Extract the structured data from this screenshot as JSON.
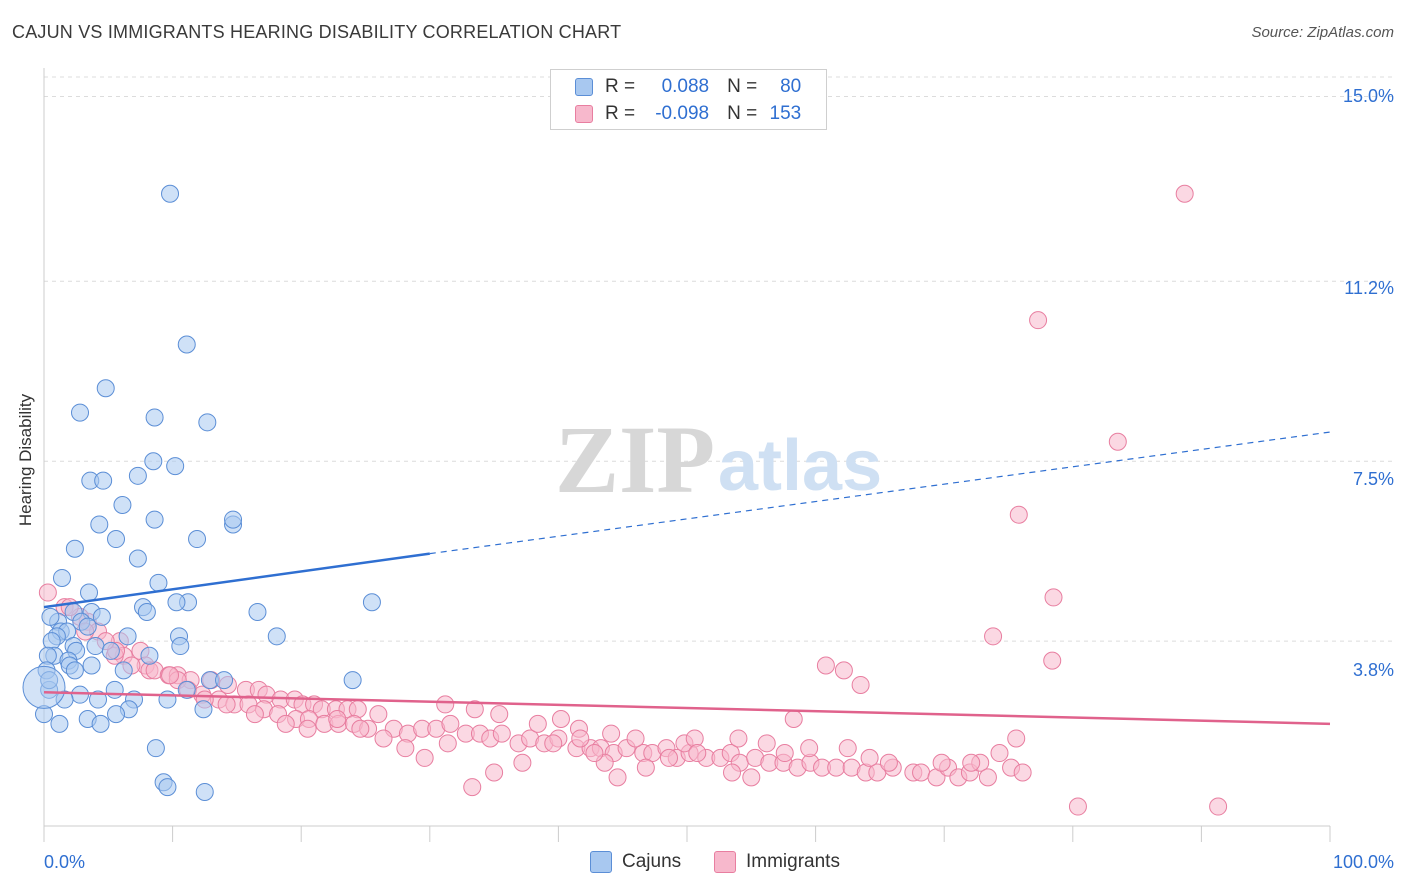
{
  "title": "CAJUN VS IMMIGRANTS HEARING DISABILITY CORRELATION CHART",
  "source": "Source: ZipAtlas.com",
  "watermark": {
    "zip": "ZIP",
    "atlas": "atlas"
  },
  "legend": {
    "rows": [
      {
        "r_label": "R =",
        "r_value": "0.088",
        "n_label": "N =",
        "n_value": "80"
      },
      {
        "r_label": "R =",
        "r_value": "-0.098",
        "n_label": "N =",
        "n_value": "153"
      }
    ]
  },
  "bottom_legend": {
    "cajuns": "Cajuns",
    "immigrants": "Immigrants"
  },
  "colors": {
    "cajuns_fill": "#a8c8f0",
    "cajuns_stroke": "#5b8ed6",
    "cajuns_line": "#2f6fd1",
    "immigrants_fill": "#f7b8cc",
    "immigrants_stroke": "#e87ea0",
    "immigrants_line": "#e0628c",
    "tick_label": "#2f6fd1",
    "grid": "#dcdcdc"
  },
  "chart_data": {
    "type": "scatter",
    "title": "CAJUN VS IMMIGRANTS HEARING DISABILITY CORRELATION CHART",
    "xlabel": "",
    "ylabel": "Hearing Disability",
    "xlim": [
      0,
      100
    ],
    "ylim": [
      0.0,
      15.4
    ],
    "x_tick_labels": [
      "0.0%",
      "100.0%"
    ],
    "y_ticks": [
      3.8,
      7.5,
      11.2,
      15.0
    ],
    "y_tick_labels": [
      "3.8%",
      "7.5%",
      "11.2%",
      "15.0%"
    ],
    "grid": true,
    "legend_position": "top-center",
    "series": [
      {
        "name": "Cajuns",
        "r": 0.088,
        "n": 80,
        "trend": {
          "x": [
            0,
            30
          ],
          "y": [
            4.5,
            5.6
          ],
          "dashed_to": [
            100,
            8.1
          ]
        },
        "points": [
          [
            9.8,
            13.0
          ],
          [
            11.1,
            9.9
          ],
          [
            4.8,
            9.0
          ],
          [
            2.8,
            8.5
          ],
          [
            8.6,
            8.4
          ],
          [
            12.7,
            8.3
          ],
          [
            10.2,
            7.4
          ],
          [
            8.5,
            7.5
          ],
          [
            7.3,
            7.2
          ],
          [
            3.6,
            7.1
          ],
          [
            4.6,
            7.1
          ],
          [
            6.1,
            6.6
          ],
          [
            8.6,
            6.3
          ],
          [
            14.7,
            6.2
          ],
          [
            14.7,
            6.3
          ],
          [
            4.3,
            6.2
          ],
          [
            5.6,
            5.9
          ],
          [
            11.9,
            5.9
          ],
          [
            2.4,
            5.7
          ],
          [
            7.3,
            5.5
          ],
          [
            1.4,
            5.1
          ],
          [
            8.9,
            5.0
          ],
          [
            3.5,
            4.8
          ],
          [
            11.2,
            4.6
          ],
          [
            25.5,
            4.6
          ],
          [
            10.3,
            4.6
          ],
          [
            7.7,
            4.5
          ],
          [
            16.6,
            4.4
          ],
          [
            3.7,
            4.4
          ],
          [
            2.3,
            4.4
          ],
          [
            8.0,
            4.4
          ],
          [
            4.5,
            4.3
          ],
          [
            1.1,
            4.2
          ],
          [
            0.5,
            4.3
          ],
          [
            2.9,
            4.2
          ],
          [
            3.4,
            4.1
          ],
          [
            1.3,
            4.0
          ],
          [
            1.8,
            4.0
          ],
          [
            18.1,
            3.9
          ],
          [
            10.5,
            3.9
          ],
          [
            6.5,
            3.9
          ],
          [
            1.0,
            3.9
          ],
          [
            0.6,
            3.8
          ],
          [
            2.3,
            3.7
          ],
          [
            10.6,
            3.7
          ],
          [
            4.0,
            3.7
          ],
          [
            2.5,
            3.6
          ],
          [
            5.2,
            3.6
          ],
          [
            8.2,
            3.5
          ],
          [
            0.8,
            3.5
          ],
          [
            0.3,
            3.5
          ],
          [
            1.9,
            3.4
          ],
          [
            3.7,
            3.3
          ],
          [
            2.0,
            3.3
          ],
          [
            6.2,
            3.2
          ],
          [
            2.4,
            3.2
          ],
          [
            0.2,
            3.2
          ],
          [
            24.0,
            3.0
          ],
          [
            12.9,
            3.0
          ],
          [
            14.0,
            3.0
          ],
          [
            5.5,
            2.8
          ],
          [
            11.1,
            2.8
          ],
          [
            2.8,
            2.7
          ],
          [
            9.6,
            2.6
          ],
          [
            7.0,
            2.6
          ],
          [
            0.4,
            2.8
          ],
          [
            1.6,
            2.6
          ],
          [
            4.2,
            2.6
          ],
          [
            6.6,
            2.4
          ],
          [
            12.4,
            2.4
          ],
          [
            5.6,
            2.3
          ],
          [
            3.4,
            2.2
          ],
          [
            4.4,
            2.1
          ],
          [
            1.2,
            2.1
          ],
          [
            0.0,
            2.3
          ],
          [
            8.7,
            1.6
          ],
          [
            9.3,
            0.9
          ],
          [
            9.6,
            0.8
          ],
          [
            12.5,
            0.7
          ],
          [
            0.4,
            3.0
          ]
        ]
      },
      {
        "name": "Immigrants",
        "r": -0.098,
        "n": 153,
        "trend": {
          "x": [
            0,
            100
          ],
          "y": [
            2.75,
            2.1
          ]
        },
        "points": [
          [
            88.7,
            13.0
          ],
          [
            77.3,
            10.4
          ],
          [
            83.5,
            7.9
          ],
          [
            75.8,
            6.4
          ],
          [
            78.5,
            4.7
          ],
          [
            0.3,
            4.8
          ],
          [
            1.6,
            4.5
          ],
          [
            3.4,
            4.2
          ],
          [
            2.8,
            4.3
          ],
          [
            73.8,
            3.9
          ],
          [
            4.2,
            4.0
          ],
          [
            3.2,
            4.0
          ],
          [
            5.9,
            3.8
          ],
          [
            7.5,
            3.6
          ],
          [
            6.2,
            3.5
          ],
          [
            5.5,
            3.5
          ],
          [
            7.9,
            3.3
          ],
          [
            8.2,
            3.2
          ],
          [
            8.6,
            3.2
          ],
          [
            9.7,
            3.1
          ],
          [
            10.4,
            3.1
          ],
          [
            11.4,
            3.0
          ],
          [
            13.0,
            3.0
          ],
          [
            14.3,
            2.9
          ],
          [
            15.7,
            2.8
          ],
          [
            16.7,
            2.8
          ],
          [
            17.3,
            2.7
          ],
          [
            18.4,
            2.6
          ],
          [
            19.5,
            2.6
          ],
          [
            20.1,
            2.5
          ],
          [
            21.0,
            2.5
          ],
          [
            21.6,
            2.4
          ],
          [
            22.7,
            2.4
          ],
          [
            23.6,
            2.4
          ],
          [
            24.4,
            2.4
          ],
          [
            10.4,
            3.0
          ],
          [
            11.2,
            2.8
          ],
          [
            12.3,
            2.7
          ],
          [
            13.6,
            2.6
          ],
          [
            14.8,
            2.5
          ],
          [
            15.9,
            2.5
          ],
          [
            17.1,
            2.4
          ],
          [
            18.2,
            2.3
          ],
          [
            19.6,
            2.2
          ],
          [
            20.6,
            2.2
          ],
          [
            21.8,
            2.1
          ],
          [
            22.9,
            2.1
          ],
          [
            24.1,
            2.1
          ],
          [
            25.2,
            2.0
          ],
          [
            26.0,
            2.3
          ],
          [
            27.2,
            2.0
          ],
          [
            28.3,
            1.9
          ],
          [
            29.4,
            2.0
          ],
          [
            30.5,
            2.0
          ],
          [
            31.6,
            2.1
          ],
          [
            32.8,
            1.9
          ],
          [
            33.9,
            1.9
          ],
          [
            34.7,
            1.8
          ],
          [
            35.6,
            1.9
          ],
          [
            36.9,
            1.7
          ],
          [
            37.8,
            1.8
          ],
          [
            38.9,
            1.7
          ],
          [
            40.0,
            1.8
          ],
          [
            41.4,
            1.6
          ],
          [
            42.5,
            1.6
          ],
          [
            43.3,
            1.6
          ],
          [
            44.3,
            1.5
          ],
          [
            45.3,
            1.6
          ],
          [
            46.6,
            1.5
          ],
          [
            47.3,
            1.5
          ],
          [
            48.4,
            1.6
          ],
          [
            49.2,
            1.4
          ],
          [
            50.2,
            1.5
          ],
          [
            51.5,
            1.4
          ],
          [
            52.6,
            1.4
          ],
          [
            53.4,
            1.5
          ],
          [
            54.1,
            1.3
          ],
          [
            55.3,
            1.4
          ],
          [
            56.4,
            1.3
          ],
          [
            57.5,
            1.3
          ],
          [
            58.6,
            1.2
          ],
          [
            59.6,
            1.3
          ],
          [
            60.5,
            1.2
          ],
          [
            61.6,
            1.2
          ],
          [
            62.8,
            1.2
          ],
          [
            63.9,
            1.1
          ],
          [
            64.8,
            1.1
          ],
          [
            66.0,
            1.2
          ],
          [
            67.6,
            1.1
          ],
          [
            68.2,
            1.1
          ],
          [
            69.4,
            1.0
          ],
          [
            70.3,
            1.2
          ],
          [
            71.1,
            1.0
          ],
          [
            72.0,
            1.1
          ],
          [
            72.8,
            1.3
          ],
          [
            73.4,
            1.0
          ],
          [
            75.2,
            1.2
          ],
          [
            76.1,
            1.1
          ],
          [
            31.2,
            2.5
          ],
          [
            33.5,
            2.4
          ],
          [
            35.4,
            2.3
          ],
          [
            38.4,
            2.1
          ],
          [
            40.2,
            2.2
          ],
          [
            41.6,
            2.0
          ],
          [
            44.1,
            1.9
          ],
          [
            46.0,
            1.8
          ],
          [
            49.8,
            1.7
          ],
          [
            50.6,
            1.8
          ],
          [
            54.0,
            1.8
          ],
          [
            56.2,
            1.7
          ],
          [
            59.5,
            1.6
          ],
          [
            62.5,
            1.6
          ],
          [
            64.2,
            1.4
          ],
          [
            65.7,
            1.3
          ],
          [
            69.8,
            1.3
          ],
          [
            72.1,
            1.3
          ],
          [
            74.3,
            1.5
          ],
          [
            75.6,
            1.8
          ],
          [
            63.5,
            2.9
          ],
          [
            62.2,
            3.2
          ],
          [
            60.8,
            3.3
          ],
          [
            58.3,
            2.2
          ],
          [
            57.6,
            1.5
          ],
          [
            55.0,
            1.0
          ],
          [
            53.5,
            1.1
          ],
          [
            50.8,
            1.5
          ],
          [
            48.6,
            1.4
          ],
          [
            46.8,
            1.2
          ],
          [
            44.6,
            1.0
          ],
          [
            43.6,
            1.3
          ],
          [
            42.8,
            1.5
          ],
          [
            41.7,
            1.8
          ],
          [
            39.6,
            1.7
          ],
          [
            37.2,
            1.3
          ],
          [
            35.0,
            1.1
          ],
          [
            33.3,
            0.8
          ],
          [
            31.4,
            1.7
          ],
          [
            29.6,
            1.4
          ],
          [
            28.1,
            1.6
          ],
          [
            26.4,
            1.8
          ],
          [
            24.6,
            2.0
          ],
          [
            22.8,
            2.2
          ],
          [
            20.5,
            2.0
          ],
          [
            18.8,
            2.1
          ],
          [
            16.4,
            2.3
          ],
          [
            14.2,
            2.5
          ],
          [
            12.5,
            2.6
          ],
          [
            9.8,
            3.1
          ],
          [
            6.8,
            3.3
          ],
          [
            5.6,
            3.6
          ],
          [
            4.8,
            3.8
          ],
          [
            2.0,
            4.5
          ],
          [
            80.4,
            0.4
          ],
          [
            91.3,
            0.4
          ],
          [
            78.4,
            3.4
          ]
        ]
      }
    ]
  }
}
